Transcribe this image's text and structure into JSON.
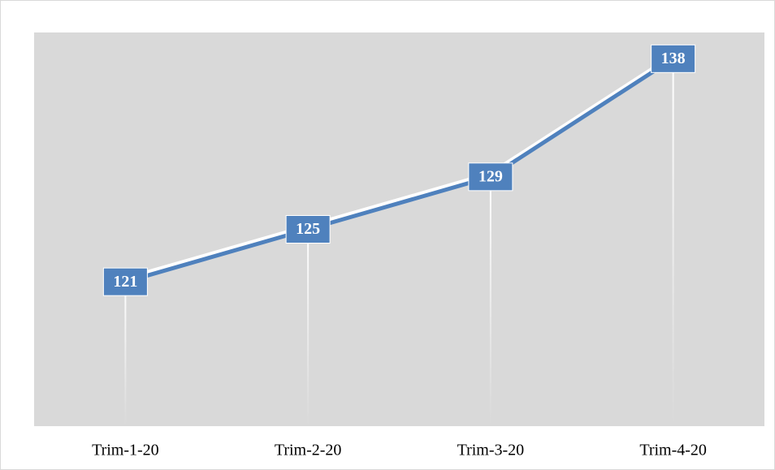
{
  "chart_data": {
    "type": "line",
    "categories": [
      "Trim-1-20",
      "Trim-2-20",
      "Trim-3-20",
      "Trim-4-20"
    ],
    "values": [
      121,
      125,
      129,
      138
    ],
    "color": "#4f81bd",
    "ylim": [
      110,
      140
    ]
  }
}
